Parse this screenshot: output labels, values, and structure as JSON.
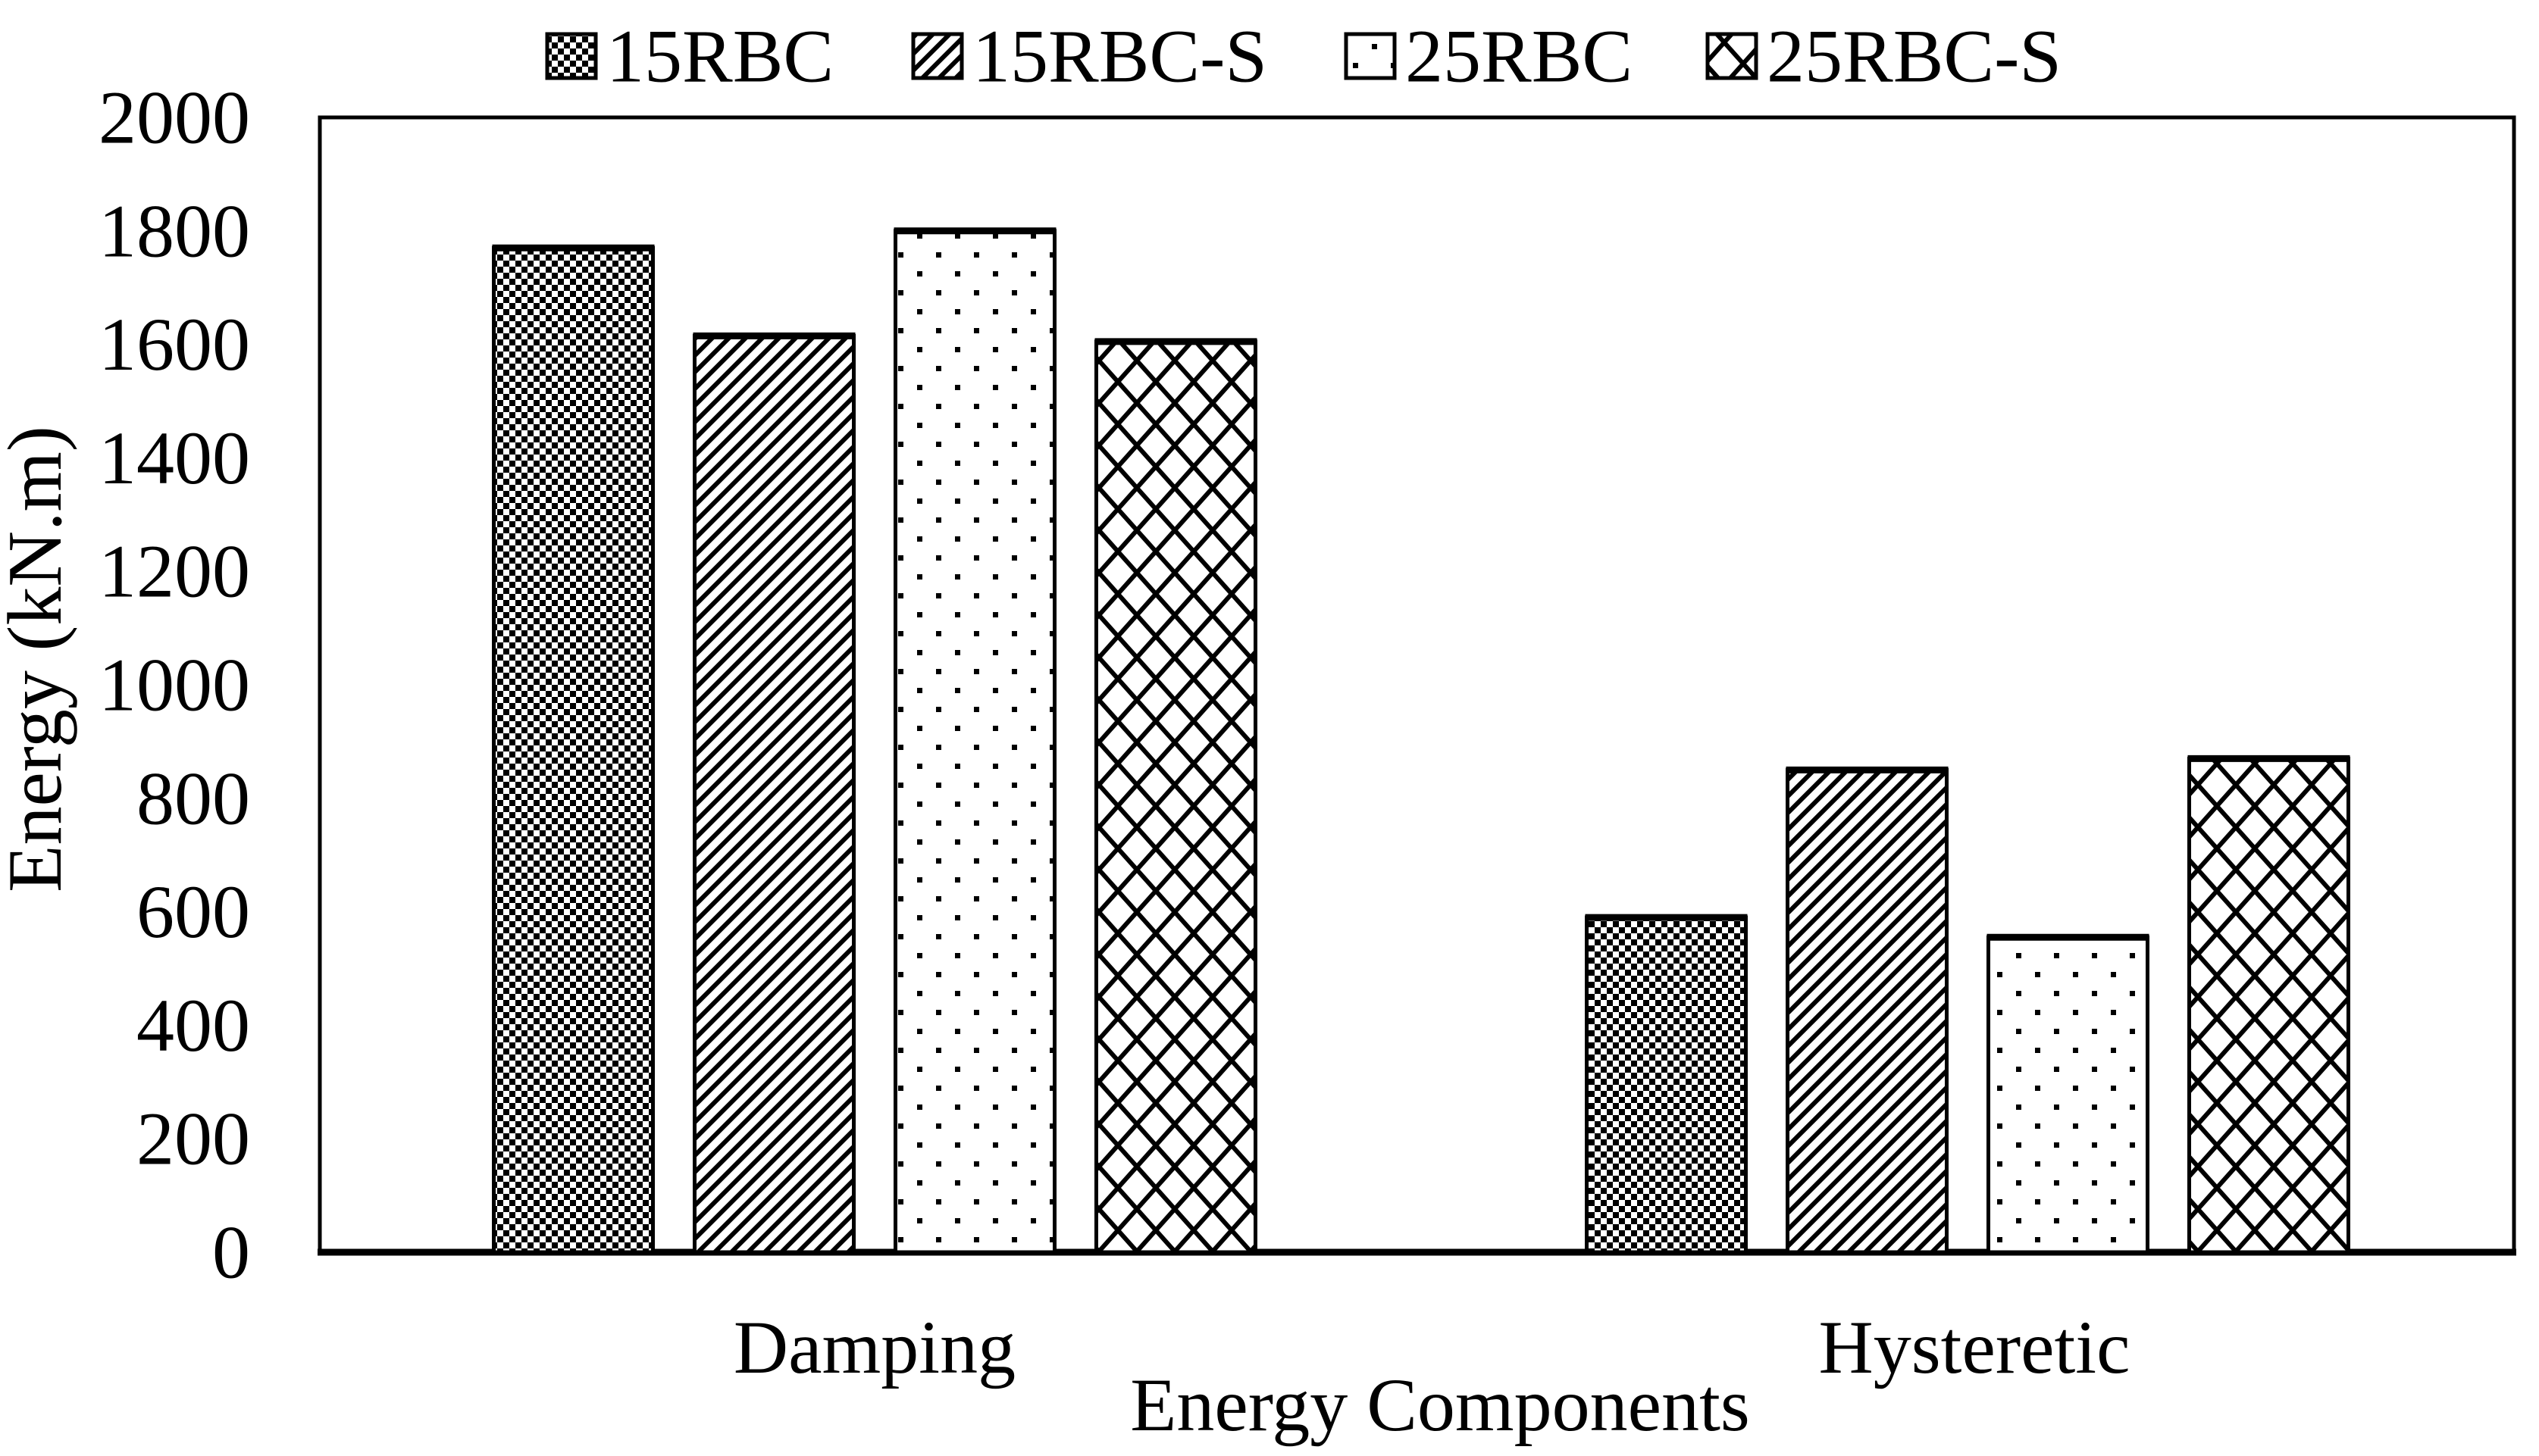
{
  "page": {
    "background": "#ffffff",
    "ink_color": "#000000"
  },
  "legend": {
    "items": [
      {
        "label": "15RBC",
        "pattern": "checker",
        "swatch_icon": "checker-swatch-icon"
      },
      {
        "label": "15RBC-S",
        "pattern": "diagonal-up",
        "swatch_icon": "diagonal-swatch-icon"
      },
      {
        "label": "25RBC",
        "pattern": "dots",
        "swatch_icon": "dots-swatch-icon"
      },
      {
        "label": "25RBC-S",
        "pattern": "diamond",
        "swatch_icon": "diamond-swatch-icon"
      }
    ]
  },
  "chart_data": {
    "type": "bar",
    "title": "",
    "categories": [
      "Damping",
      "Hysteretic"
    ],
    "series": [
      {
        "name": "15RBC",
        "pattern": "checker",
        "values": [
          1770,
          590
        ]
      },
      {
        "name": "15RBC-S",
        "pattern": "diagonal-up",
        "values": [
          1615,
          850
        ]
      },
      {
        "name": "25RBC",
        "pattern": "dots",
        "values": [
          1800,
          555
        ]
      },
      {
        "name": "25RBC-S",
        "pattern": "diamond",
        "values": [
          1605,
          870
        ]
      }
    ],
    "xlabel": "Energy Components",
    "ylabel": "Energy (kN.m)",
    "ylim": [
      0,
      2000
    ],
    "ytick_step": 200,
    "ytick_labels": [
      "0",
      "200",
      "400",
      "600",
      "800",
      "1000",
      "1200",
      "1400",
      "1600",
      "1800",
      "2000"
    ],
    "grid": false,
    "legend_position": "top",
    "bar_outline_color": "#000000",
    "bar_fill_background": "#ffffff"
  }
}
